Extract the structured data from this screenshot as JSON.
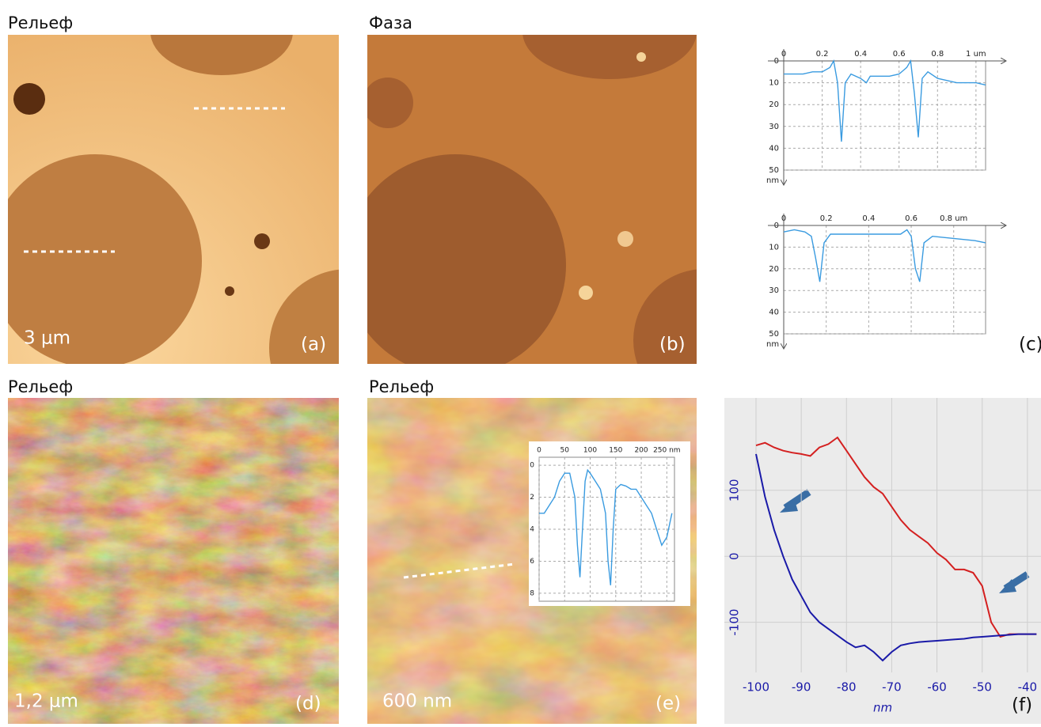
{
  "panels": [
    {
      "title": "Рельеф",
      "label": "(a)",
      "scale": "3 μm"
    },
    {
      "title": "Фаза",
      "label": "(b)"
    },
    {
      "label": "(c)"
    },
    {
      "title": "Рельеф",
      "label": "(d)",
      "scale": "1,2 μm"
    },
    {
      "title": "Рельеф",
      "label": "(e)",
      "scale": "600 nm"
    },
    {
      "label": "(f)"
    }
  ],
  "chart_data": [
    {
      "type": "line",
      "y_inverted": true,
      "grid": true,
      "y_label": "nm",
      "x": [
        0,
        0.05,
        0.1,
        0.15,
        0.2,
        0.24,
        0.26,
        0.28,
        0.3,
        0.32,
        0.35,
        0.4,
        0.43,
        0.45,
        0.5,
        0.55,
        0.6,
        0.64,
        0.66,
        0.68,
        0.7,
        0.72,
        0.75,
        0.8,
        0.9,
        1.0,
        1.05
      ],
      "series": [
        {
          "color": "#3a9be0",
          "values": [
            6,
            6,
            6,
            5,
            5,
            3,
            0,
            10,
            37,
            10,
            6,
            8,
            10,
            7,
            7,
            7,
            6,
            3,
            0,
            15,
            35,
            8,
            5,
            8,
            10,
            10,
            11
          ]
        }
      ],
      "xlim": [
        0,
        1.05
      ],
      "ylim": [
        0,
        50
      ],
      "xticks": [
        0,
        0.2,
        0.4,
        0.6,
        0.8,
        {
          "value": 1,
          "label": "1 um"
        }
      ],
      "yticks": [
        0,
        10,
        20,
        30,
        40,
        50
      ]
    },
    {
      "type": "line",
      "y_inverted": true,
      "grid": true,
      "y_label": "nm",
      "x": [
        0,
        0.05,
        0.1,
        0.13,
        0.15,
        0.17,
        0.19,
        0.22,
        0.3,
        0.4,
        0.5,
        0.55,
        0.58,
        0.6,
        0.62,
        0.64,
        0.66,
        0.7,
        0.8,
        0.9,
        0.95
      ],
      "series": [
        {
          "color": "#3a9be0",
          "values": [
            3,
            2,
            3,
            5,
            15,
            26,
            8,
            4,
            4,
            4,
            4,
            4,
            2,
            5,
            20,
            26,
            8,
            5,
            6,
            7,
            8
          ]
        }
      ],
      "xlim": [
        0,
        0.95
      ],
      "ylim": [
        0,
        50
      ],
      "xticks": [
        0,
        0.2,
        0.4,
        0.6,
        {
          "value": 0.8,
          "label": "0.8 um"
        }
      ],
      "yticks": [
        0,
        10,
        20,
        30,
        40,
        50
      ]
    },
    {
      "type": "line",
      "y_inverted": true,
      "grid": true,
      "x": [
        0,
        10,
        20,
        30,
        40,
        50,
        60,
        70,
        75,
        80,
        85,
        90,
        95,
        100,
        110,
        120,
        130,
        135,
        140,
        145,
        150,
        160,
        170,
        180,
        190,
        200,
        210,
        220,
        230,
        240,
        250,
        260
      ],
      "series": [
        {
          "color": "#3a9be0",
          "values": [
            3,
            3,
            2.5,
            2,
            1,
            0.5,
            0.5,
            2,
            5,
            7,
            4,
            1,
            0.3,
            0.5,
            1,
            1.5,
            3,
            6,
            7.5,
            4,
            1.5,
            1.2,
            1.3,
            1.5,
            1.5,
            2,
            2.5,
            3,
            4,
            5,
            4.5,
            3
          ]
        }
      ],
      "xlim": [
        0,
        265
      ],
      "ylim": [
        -0.5,
        8.5
      ],
      "xticks": [
        0,
        50,
        100,
        150,
        200,
        {
          "value": 250,
          "label": "250 nm"
        }
      ],
      "yticks": [
        0,
        2,
        4,
        6,
        8
      ]
    },
    {
      "type": "line",
      "grid": true,
      "x_label": "nm",
      "x": [
        -100,
        -98,
        -96,
        -94,
        -92,
        -90,
        -88,
        -86,
        -84,
        -82,
        -80,
        -78,
        -76,
        -74,
        -72,
        -70,
        -68,
        -66,
        -64,
        -62,
        -60,
        -58,
        -56,
        -54,
        -52,
        -50,
        -48,
        -46,
        -44,
        -42,
        -40,
        -38
      ],
      "series": [
        {
          "color": "#d42020",
          "values": [
            168,
            172,
            165,
            160,
            157,
            155,
            152,
            165,
            170,
            180,
            160,
            140,
            120,
            105,
            95,
            75,
            55,
            40,
            30,
            20,
            5,
            -5,
            -20,
            -20,
            -25,
            -45,
            -100,
            -122,
            -118,
            -118,
            -118,
            -118
          ]
        },
        {
          "color": "#1a1aa8",
          "values": [
            155,
            90,
            40,
            0,
            -35,
            -60,
            -85,
            -100,
            -110,
            -120,
            -130,
            -138,
            -135,
            -145,
            -158,
            -145,
            -135,
            -132,
            -130,
            -129,
            -128,
            -127,
            -126,
            -125,
            -123,
            -122,
            -121,
            -120,
            -119,
            -118,
            -118,
            -118
          ]
        }
      ],
      "xlim": [
        -107,
        -37
      ],
      "ylim": [
        -176,
        240
      ],
      "xticks": [
        -100,
        -90,
        -80,
        -70,
        -60,
        -50,
        -40
      ],
      "yticks": [
        -100,
        0,
        100
      ]
    }
  ]
}
